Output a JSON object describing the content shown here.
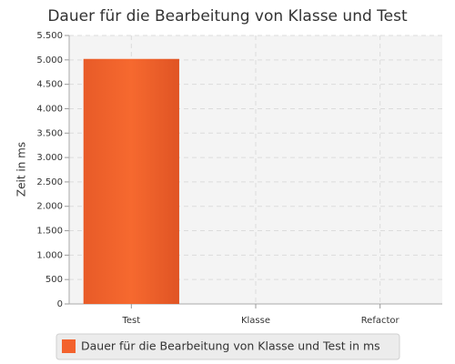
{
  "chart_data": {
    "type": "bar",
    "title": "Dauer für die Bearbeitung von Klasse und Test",
    "y_label": "Zeit in ms",
    "categories": [
      "Test",
      "Klasse",
      "Refactor"
    ],
    "series": [
      {
        "name": "Dauer für die Bearbeitung von Klasse und Test in ms",
        "color": "#f3622d",
        "values": [
          5020,
          0,
          0
        ]
      }
    ],
    "ylim": [
      0,
      5500
    ],
    "yticks": [
      0,
      500,
      {
        "value": 1000,
        "label": "1.000"
      },
      {
        "value": 1500,
        "label": "1.500"
      },
      {
        "value": 2000,
        "label": "2.000"
      },
      {
        "value": 2500,
        "label": "2.500"
      },
      {
        "value": 3000,
        "label": "3.000"
      },
      {
        "value": 3500,
        "label": "3.500"
      },
      {
        "value": 4000,
        "label": "4.000"
      },
      {
        "value": 4500,
        "label": "4.500"
      },
      {
        "value": 5000,
        "label": "5.000"
      },
      {
        "value": 5500,
        "label": "5.500"
      }
    ],
    "grid": true,
    "legend": "bottom"
  }
}
